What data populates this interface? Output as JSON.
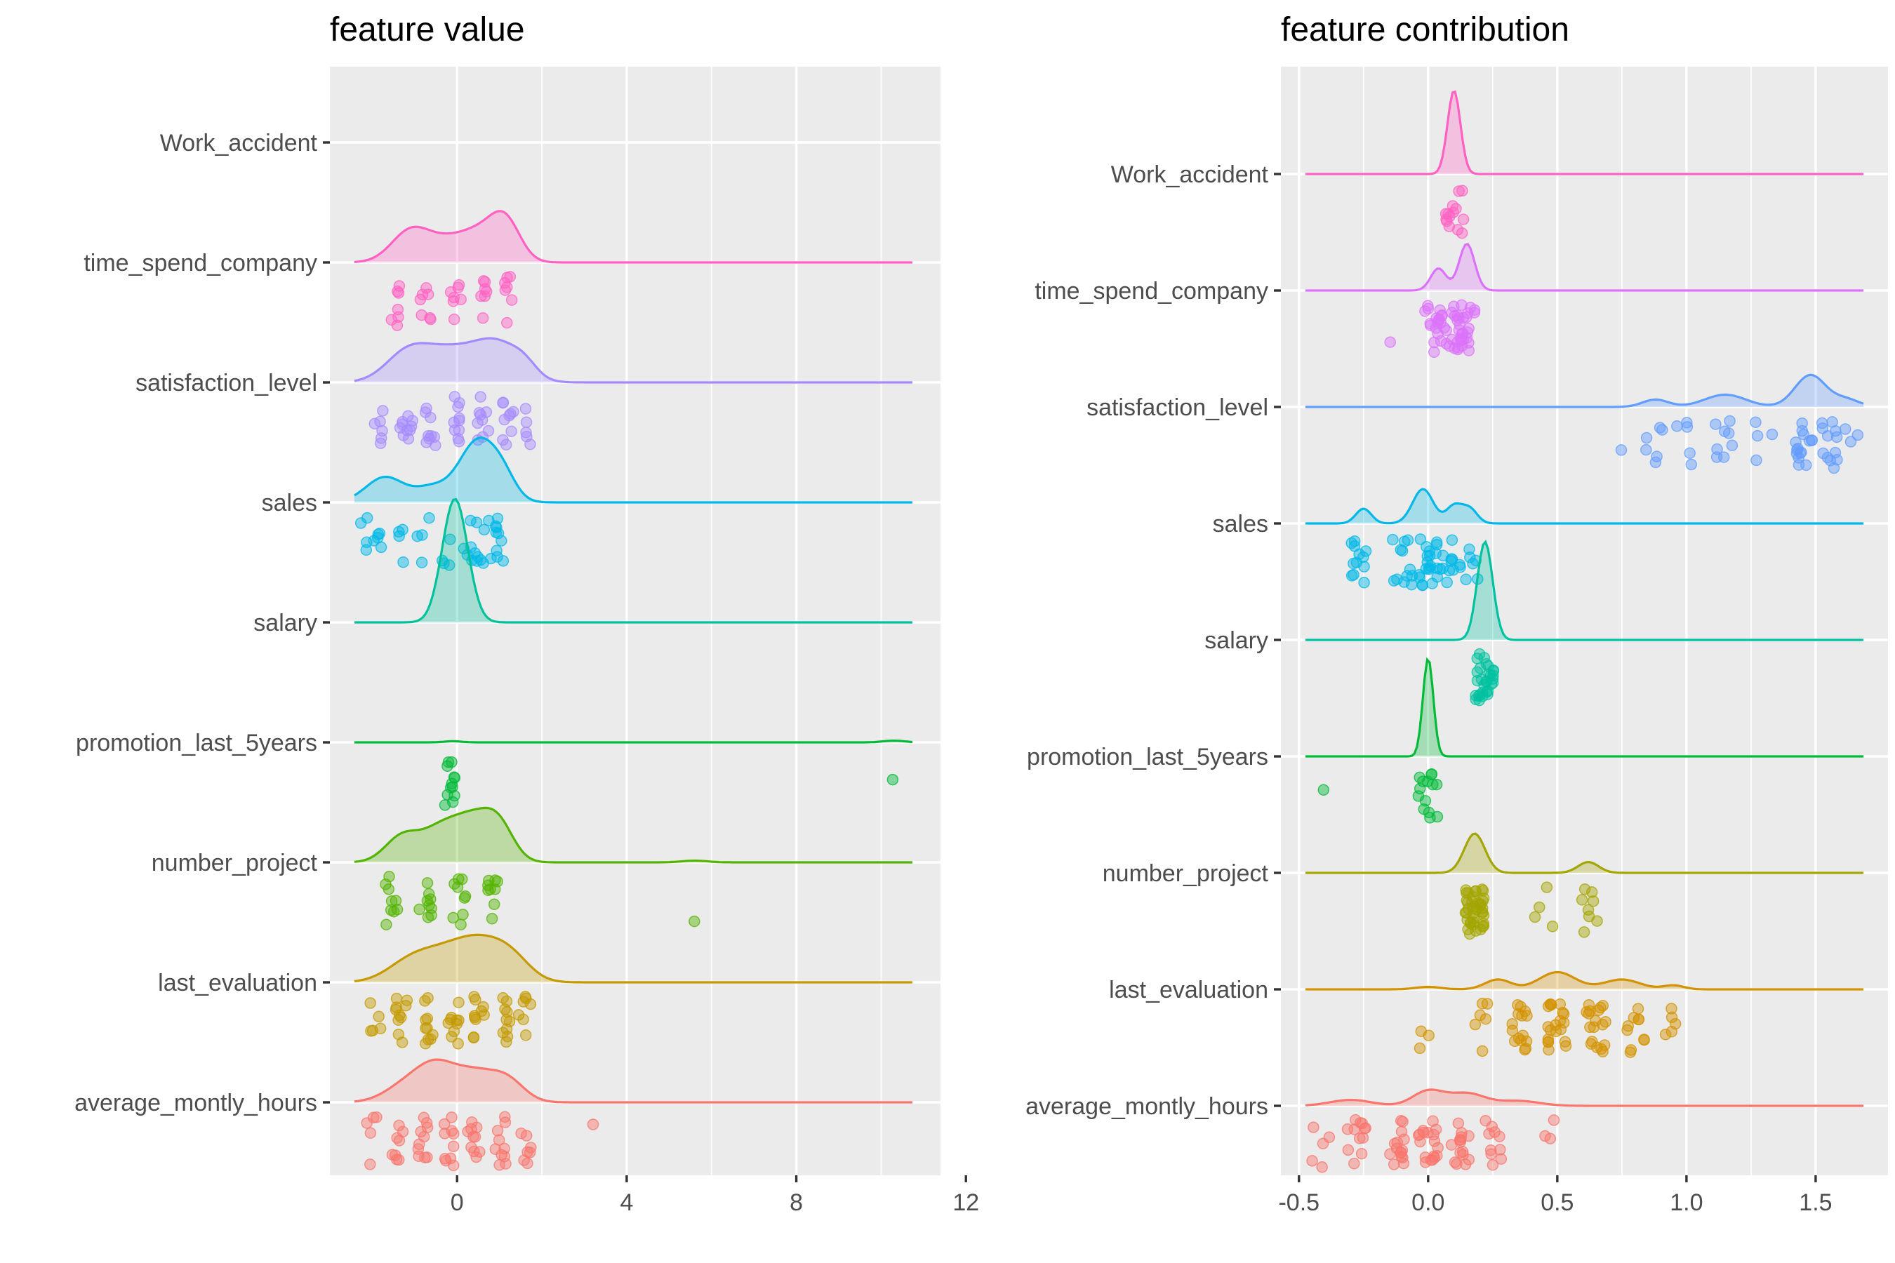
{
  "chart_data": [
    {
      "type": "ridgeline",
      "title": "feature value",
      "xlim": [
        -3,
        11.4
      ],
      "x_ticks": [
        0,
        4,
        8,
        12
      ],
      "x_tick_labels": [
        "0",
        "4",
        "8",
        "12"
      ],
      "grid": true,
      "legend": "none",
      "features": [
        {
          "name": "Work_accident",
          "color": "#ff61c3",
          "density": null,
          "points": []
        },
        {
          "name": "time_spend_company",
          "color": "#ff61c3",
          "density": {
            "peaks": [
              {
                "x": -1.1,
                "h": 0.55,
                "w": 0.45
              },
              {
                "x": -0.2,
                "h": 0.35,
                "w": 0.5
              },
              {
                "x": 0.6,
                "h": 0.45,
                "w": 0.45
              },
              {
                "x": 1.15,
                "h": 0.65,
                "w": 0.35
              }
            ]
          },
          "points": [
            {
              "x": -1.45,
              "count": 7
            },
            {
              "x": -0.75,
              "count": 7
            },
            {
              "x": -0.05,
              "count": 7
            },
            {
              "x": 0.6,
              "count": 7
            },
            {
              "x": 1.2,
              "count": 7
            }
          ]
        },
        {
          "name": "satisfaction_level",
          "color": "#a58aff",
          "density": {
            "peaks": [
              {
                "x": -1.2,
                "h": 0.4,
                "w": 0.5
              },
              {
                "x": -0.1,
                "h": 0.6,
                "w": 0.8
              },
              {
                "x": 1.0,
                "h": 0.5,
                "w": 0.5
              },
              {
                "x": 1.6,
                "h": 0.2,
                "w": 0.3
              }
            ]
          },
          "points": [
            {
              "x": -1.8,
              "count": 6
            },
            {
              "x": -1.2,
              "count": 10
            },
            {
              "x": -0.6,
              "count": 9
            },
            {
              "x": 0,
              "count": 10
            },
            {
              "x": 0.6,
              "count": 9
            },
            {
              "x": 1.2,
              "count": 9
            },
            {
              "x": 1.7,
              "count": 5
            }
          ]
        },
        {
          "name": "sales",
          "color": "#00b8e7",
          "density": {
            "peaks": [
              {
                "x": -1.7,
                "h": 0.45,
                "w": 0.45
              },
              {
                "x": -0.6,
                "h": 0.25,
                "w": 0.4
              },
              {
                "x": 0.5,
                "h": 1.1,
                "w": 0.45
              },
              {
                "x": 1.1,
                "h": 0.3,
                "w": 0.3
              }
            ]
          },
          "points": [
            {
              "x": -2.2,
              "count": 4
            },
            {
              "x": -1.85,
              "count": 5
            },
            {
              "x": -1.4,
              "count": 4
            },
            {
              "x": -0.8,
              "count": 4
            },
            {
              "x": -0.25,
              "count": 4
            },
            {
              "x": 0.3,
              "count": 6
            },
            {
              "x": 0.55,
              "count": 6
            },
            {
              "x": 0.85,
              "count": 6
            },
            {
              "x": 1.05,
              "count": 5
            }
          ]
        },
        {
          "name": "salary",
          "color": "#00c19a",
          "density": {
            "peaks": [
              {
                "x": -0.05,
                "h": 2.2,
                "w": 0.3
              }
            ]
          },
          "points": []
        },
        {
          "name": "promotion_last_5years",
          "color": "#00ba38",
          "density": {
            "peaks": [
              {
                "x": -0.1,
                "h": 0.02,
                "w": 0.2
              },
              {
                "x": 10.3,
                "h": 0.03,
                "w": 0.25
              }
            ]
          },
          "points": [
            {
              "x": -0.15,
              "count": 12
            },
            {
              "x": 10.3,
              "count": 1
            }
          ]
        },
        {
          "name": "number_project",
          "color": "#53b400",
          "density": {
            "peaks": [
              {
                "x": -1.3,
                "h": 0.45,
                "w": 0.4
              },
              {
                "x": -0.4,
                "h": 0.55,
                "w": 0.45
              },
              {
                "x": 0.4,
                "h": 0.7,
                "w": 0.45
              },
              {
                "x": 1.0,
                "h": 0.55,
                "w": 0.35
              },
              {
                "x": 5.6,
                "h": 0.03,
                "w": 0.3
              }
            ]
          },
          "points": [
            {
              "x": -1.55,
              "count": 9
            },
            {
              "x": -0.75,
              "count": 9
            },
            {
              "x": 0.05,
              "count": 9
            },
            {
              "x": 0.85,
              "count": 9
            },
            {
              "x": 5.6,
              "count": 1
            }
          ]
        },
        {
          "name": "last_evaluation",
          "color": "#c49a00",
          "density": {
            "peaks": [
              {
                "x": -1.1,
                "h": 0.35,
                "w": 0.55
              },
              {
                "x": -0.2,
                "h": 0.45,
                "w": 0.6
              },
              {
                "x": 0.6,
                "h": 0.55,
                "w": 0.55
              },
              {
                "x": 1.3,
                "h": 0.35,
                "w": 0.45
              }
            ]
          },
          "points": [
            {
              "x": -1.9,
              "count": 5
            },
            {
              "x": -1.3,
              "count": 10
            },
            {
              "x": -0.7,
              "count": 10
            },
            {
              "x": -0.1,
              "count": 10
            },
            {
              "x": 0.5,
              "count": 10
            },
            {
              "x": 1.1,
              "count": 10
            },
            {
              "x": 1.6,
              "count": 7
            }
          ]
        },
        {
          "name": "average_montly_hours",
          "color": "#f8766d",
          "density": {
            "peaks": [
              {
                "x": -1.2,
                "h": 0.3,
                "w": 0.5
              },
              {
                "x": -0.5,
                "h": 0.55,
                "w": 0.45
              },
              {
                "x": 0.4,
                "h": 0.5,
                "w": 0.5
              },
              {
                "x": 1.2,
                "h": 0.35,
                "w": 0.4
              }
            ]
          },
          "points": [
            {
              "x": -2.0,
              "count": 5
            },
            {
              "x": -1.4,
              "count": 8
            },
            {
              "x": -0.8,
              "count": 10
            },
            {
              "x": -0.2,
              "count": 10
            },
            {
              "x": 0.4,
              "count": 10
            },
            {
              "x": 1.0,
              "count": 10
            },
            {
              "x": 1.6,
              "count": 7
            },
            {
              "x": 3.2,
              "count": 1
            }
          ]
        }
      ]
    },
    {
      "type": "ridgeline",
      "title": "feature contribution",
      "xlim": [
        -0.57,
        1.78
      ],
      "x_ticks": [
        -0.5,
        0.0,
        0.5,
        1.0,
        1.5
      ],
      "x_tick_labels": [
        "-0.5",
        "0.0",
        "0.5",
        "1.0",
        "1.5"
      ],
      "grid": true,
      "legend": "none",
      "features": [
        {
          "name": "Work_accident",
          "color": "#ff61c3",
          "density": {
            "peaks": [
              {
                "x": 0.1,
                "h": 1.7,
                "w": 0.025
              }
            ]
          },
          "points": [
            {
              "x": 0.1,
              "count": 14
            }
          ]
        },
        {
          "name": "time_spend_company",
          "color": "#dc71fa",
          "density": {
            "peaks": [
              {
                "x": 0.04,
                "h": 0.45,
                "w": 0.03
              },
              {
                "x": 0.15,
                "h": 0.95,
                "w": 0.03
              }
            ]
          },
          "points": [
            {
              "x": -0.18,
              "count": 1
            },
            {
              "x": 0.02,
              "count": 18
            },
            {
              "x": 0.1,
              "count": 15
            },
            {
              "x": 0.15,
              "count": 20
            }
          ]
        },
        {
          "name": "satisfaction_level",
          "color": "#619cff",
          "density": {
            "peaks": [
              {
                "x": 0.88,
                "h": 0.15,
                "w": 0.05
              },
              {
                "x": 1.15,
                "h": 0.25,
                "w": 0.08
              },
              {
                "x": 1.48,
                "h": 0.65,
                "w": 0.06
              },
              {
                "x": 1.62,
                "h": 0.15,
                "w": 0.05
              }
            ]
          },
          "points": [
            {
              "x": 0.75,
              "count": 1
            },
            {
              "x": 0.88,
              "count": 6
            },
            {
              "x": 1.0,
              "count": 5
            },
            {
              "x": 1.15,
              "count": 8
            },
            {
              "x": 1.3,
              "count": 4
            },
            {
              "x": 1.45,
              "count": 15
            },
            {
              "x": 1.55,
              "count": 12
            },
            {
              "x": 1.63,
              "count": 3
            }
          ]
        },
        {
          "name": "sales",
          "color": "#00b8e7",
          "density": {
            "peaks": [
              {
                "x": -0.25,
                "h": 0.3,
                "w": 0.03
              },
              {
                "x": -0.02,
                "h": 0.7,
                "w": 0.04
              },
              {
                "x": 0.1,
                "h": 0.35,
                "w": 0.03
              },
              {
                "x": 0.16,
                "h": 0.3,
                "w": 0.03
              }
            ]
          },
          "points": [
            {
              "x": -0.26,
              "count": 12
            },
            {
              "x": -0.1,
              "count": 12
            },
            {
              "x": 0.0,
              "count": 20
            },
            {
              "x": 0.08,
              "count": 10
            },
            {
              "x": 0.16,
              "count": 8
            }
          ]
        },
        {
          "name": "salary",
          "color": "#00c19f",
          "density": {
            "peaks": [
              {
                "x": 0.22,
                "h": 2.0,
                "w": 0.03
              }
            ]
          },
          "points": [
            {
              "x": 0.22,
              "count": 30
            }
          ]
        },
        {
          "name": "promotion_last_5years",
          "color": "#00ba38",
          "density": {
            "peaks": [
              {
                "x": 0.0,
                "h": 2.0,
                "w": 0.02
              }
            ]
          },
          "points": [
            {
              "x": -0.4,
              "count": 1
            },
            {
              "x": 0.0,
              "count": 14
            }
          ]
        },
        {
          "name": "number_project",
          "color": "#a3a500",
          "density": {
            "peaks": [
              {
                "x": 0.18,
                "h": 0.8,
                "w": 0.04
              },
              {
                "x": 0.62,
                "h": 0.22,
                "w": 0.04
              }
            ]
          },
          "points": [
            {
              "x": 0.18,
              "count": 40
            },
            {
              "x": 0.45,
              "count": 4
            },
            {
              "x": 0.62,
              "count": 8
            }
          ]
        },
        {
          "name": "last_evaluation",
          "color": "#d39200",
          "density": {
            "peaks": [
              {
                "x": 0.0,
                "h": 0.05,
                "w": 0.05
              },
              {
                "x": 0.27,
                "h": 0.2,
                "w": 0.05
              },
              {
                "x": 0.5,
                "h": 0.35,
                "w": 0.07
              },
              {
                "x": 0.75,
                "h": 0.2,
                "w": 0.07
              },
              {
                "x": 0.95,
                "h": 0.08,
                "w": 0.04
              }
            ]
          },
          "points": [
            {
              "x": 0.0,
              "count": 3
            },
            {
              "x": 0.2,
              "count": 6
            },
            {
              "x": 0.35,
              "count": 15
            },
            {
              "x": 0.5,
              "count": 20
            },
            {
              "x": 0.65,
              "count": 18
            },
            {
              "x": 0.8,
              "count": 10
            },
            {
              "x": 0.95,
              "count": 5
            }
          ]
        },
        {
          "name": "average_montly_hours",
          "color": "#f8766d",
          "density": {
            "peaks": [
              {
                "x": -0.3,
                "h": 0.12,
                "w": 0.08
              },
              {
                "x": 0.0,
                "h": 0.3,
                "w": 0.06
              },
              {
                "x": 0.15,
                "h": 0.25,
                "w": 0.07
              },
              {
                "x": 0.35,
                "h": 0.1,
                "w": 0.08
              }
            ]
          },
          "points": [
            {
              "x": -0.42,
              "count": 5
            },
            {
              "x": -0.28,
              "count": 12
            },
            {
              "x": -0.12,
              "count": 15
            },
            {
              "x": 0.0,
              "count": 18
            },
            {
              "x": 0.12,
              "count": 15
            },
            {
              "x": 0.26,
              "count": 10
            },
            {
              "x": 0.45,
              "count": 3
            }
          ]
        }
      ]
    }
  ]
}
